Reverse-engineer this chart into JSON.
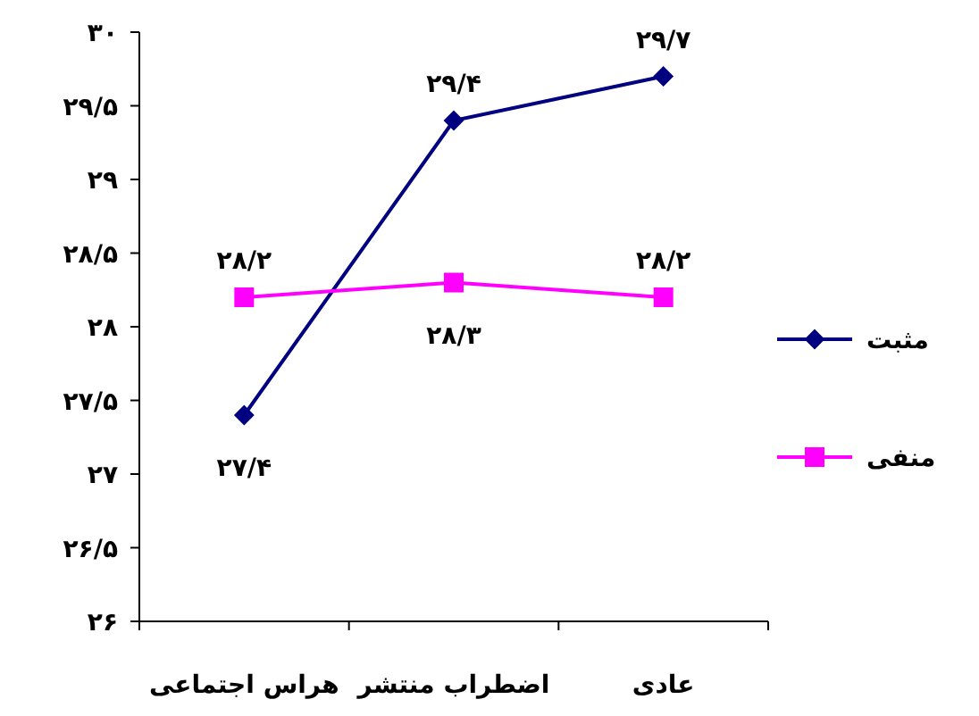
{
  "chart_data": {
    "type": "line",
    "categories": [
      "هراس اجتماعی",
      "اضطراب منتشر",
      "عادی"
    ],
    "series": [
      {
        "name": "مثبت",
        "color": "#000080",
        "marker": "diamond",
        "values": [
          27.4,
          29.4,
          29.7
        ],
        "value_labels": [
          "۲۷/۴",
          "۲۹/۴",
          "۲۹/۷"
        ]
      },
      {
        "name": "منفی",
        "color": "#ff00ff",
        "marker": "square",
        "values": [
          28.2,
          28.3,
          28.2
        ],
        "value_labels": [
          "۲۸/۲",
          "۲۸/۳",
          "۲۸/۲"
        ]
      }
    ],
    "ylim": [
      26,
      30
    ],
    "yticks": [
      {
        "value": 26,
        "label": "۲۶"
      },
      {
        "value": 26.5,
        "label": "۲۶/۵"
      },
      {
        "value": 27,
        "label": "۲۷"
      },
      {
        "value": 27.5,
        "label": "۲۷/۵"
      },
      {
        "value": 28,
        "label": "۲۸"
      },
      {
        "value": 28.5,
        "label": "۲۸/۵"
      },
      {
        "value": 29,
        "label": "۲۹"
      },
      {
        "value": 29.5,
        "label": "۲۹/۵"
      },
      {
        "value": 30,
        "label": "۳۰"
      }
    ],
    "grid": false,
    "legend": "right"
  }
}
